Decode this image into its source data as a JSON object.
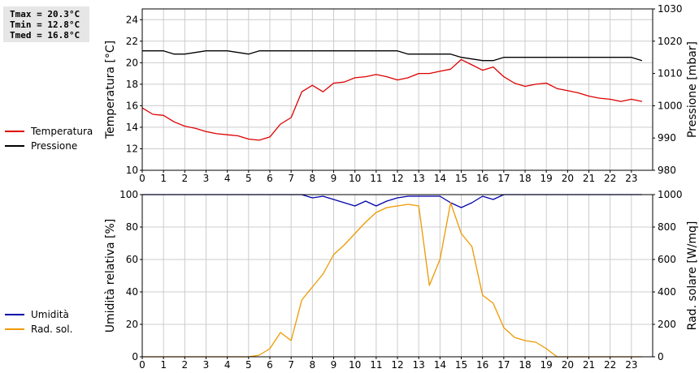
{
  "stats": {
    "tmax": "Tmax = 20.3°C",
    "tmin": "Tmin = 12.8°C",
    "tmed": "Tmed = 16.8°C"
  },
  "chart_data": [
    {
      "type": "line",
      "xlim": [
        0,
        24
      ],
      "x_ticks": [
        0,
        1,
        2,
        3,
        4,
        5,
        6,
        7,
        8,
        9,
        10,
        11,
        12,
        13,
        14,
        15,
        16,
        17,
        18,
        19,
        20,
        21,
        22,
        23
      ],
      "ylabel": "Temperatura [°C]",
      "ylim": [
        10,
        25
      ],
      "y_ticks": [
        10,
        12,
        14,
        16,
        18,
        20,
        22,
        24
      ],
      "y2label": "Pressione [mbar]",
      "y2lim": [
        980,
        1030
      ],
      "y2_ticks": [
        980,
        990,
        1000,
        1010,
        1020,
        1030
      ],
      "grid": true,
      "legend_placement": "left",
      "series": [
        {
          "name": "Temperatura",
          "axis": "left",
          "color": "#dd0000",
          "x": [
            0,
            0.5,
            1,
            1.5,
            2,
            2.5,
            3,
            3.5,
            4,
            4.5,
            5,
            5.5,
            6,
            6.5,
            7,
            7.5,
            8,
            8.5,
            9,
            9.5,
            10,
            10.5,
            11,
            11.5,
            12,
            12.5,
            13,
            13.5,
            14,
            14.5,
            15,
            15.5,
            16,
            16.5,
            17,
            17.5,
            18,
            18.5,
            19,
            19.5,
            20,
            20.5,
            21,
            21.5,
            22,
            22.5,
            23,
            23.5
          ],
          "values": [
            15.8,
            15.2,
            15.1,
            14.5,
            14.1,
            13.9,
            13.6,
            13.4,
            13.3,
            13.2,
            12.9,
            12.8,
            13.1,
            14.3,
            14.9,
            17.3,
            17.9,
            17.3,
            18.1,
            18.2,
            18.6,
            18.7,
            18.9,
            18.7,
            18.4,
            18.6,
            19.0,
            19.0,
            19.2,
            19.4,
            20.3,
            19.8,
            19.3,
            19.6,
            18.7,
            18.1,
            17.8,
            18.0,
            18.1,
            17.6,
            17.4,
            17.2,
            16.9,
            16.7,
            16.6,
            16.4,
            16.6,
            16.4
          ]
        },
        {
          "name": "Pressione",
          "axis": "right",
          "color": "#000000",
          "x": [
            0,
            1,
            1.5,
            2,
            3,
            4,
            5,
            5.5,
            6,
            7,
            8,
            9,
            10,
            11,
            12,
            12.5,
            13,
            14,
            14.5,
            15,
            16,
            16.5,
            17,
            18,
            19,
            20,
            21,
            22,
            23,
            23.5
          ],
          "values": [
            1017,
            1017,
            1016,
            1016,
            1017,
            1017,
            1016,
            1017,
            1017,
            1017,
            1017,
            1017,
            1017,
            1017,
            1017,
            1016,
            1016,
            1016,
            1016,
            1015,
            1014,
            1014,
            1015,
            1015,
            1015,
            1015,
            1015,
            1015,
            1015,
            1014
          ]
        }
      ]
    },
    {
      "type": "line",
      "xlim": [
        0,
        24
      ],
      "x_ticks": [
        0,
        1,
        2,
        3,
        4,
        5,
        6,
        7,
        8,
        9,
        10,
        11,
        12,
        13,
        14,
        15,
        16,
        17,
        18,
        19,
        20,
        21,
        22,
        23
      ],
      "ylabel": "Umidità relativa [%]",
      "ylim": [
        0,
        100
      ],
      "y_ticks": [
        0,
        20,
        40,
        60,
        80,
        100
      ],
      "y2label": "Rad. solare [W/mq]",
      "y2lim": [
        0,
        1000
      ],
      "y2_ticks": [
        0,
        200,
        400,
        600,
        800,
        1000
      ],
      "grid": true,
      "legend_placement": "left",
      "series": [
        {
          "name": "Umidità",
          "axis": "left",
          "color": "#0000aa",
          "x": [
            0,
            7.5,
            8,
            8.5,
            9,
            9.5,
            10,
            10.5,
            11,
            11.5,
            12,
            12.5,
            13,
            13.5,
            14,
            14.5,
            15,
            15.5,
            16,
            16.5,
            17,
            17.5,
            23.5
          ],
          "values": [
            100,
            100,
            98,
            99,
            97,
            95,
            93,
            96,
            93,
            96,
            98,
            99,
            99,
            99,
            99,
            95,
            92,
            95,
            99,
            97,
            100,
            100,
            100
          ]
        },
        {
          "name": "Rad. sol.",
          "axis": "right",
          "color": "#ee9900",
          "x": [
            0,
            0.5,
            1,
            1.5,
            2,
            2.5,
            3,
            3.5,
            4,
            4.5,
            5,
            5.5,
            6,
            6.5,
            7,
            7.5,
            8,
            8.5,
            9,
            9.5,
            10,
            10.5,
            11,
            11.5,
            12,
            12.5,
            13,
            13.5,
            14,
            14.5,
            15,
            15.5,
            16,
            16.5,
            17,
            17.5,
            18,
            18.5,
            19,
            19.5,
            20,
            20.5,
            21,
            21.5,
            22,
            22.5,
            23,
            23.5
          ],
          "values": [
            0,
            0,
            0,
            0,
            0,
            0,
            0,
            0,
            0,
            0,
            0,
            10,
            50,
            150,
            100,
            350,
            430,
            510,
            630,
            690,
            760,
            830,
            890,
            920,
            930,
            940,
            930,
            440,
            600,
            950,
            760,
            680,
            380,
            330,
            180,
            120,
            100,
            90,
            50,
            0,
            0,
            0,
            0,
            0,
            0,
            0,
            0,
            0
          ]
        }
      ]
    }
  ]
}
